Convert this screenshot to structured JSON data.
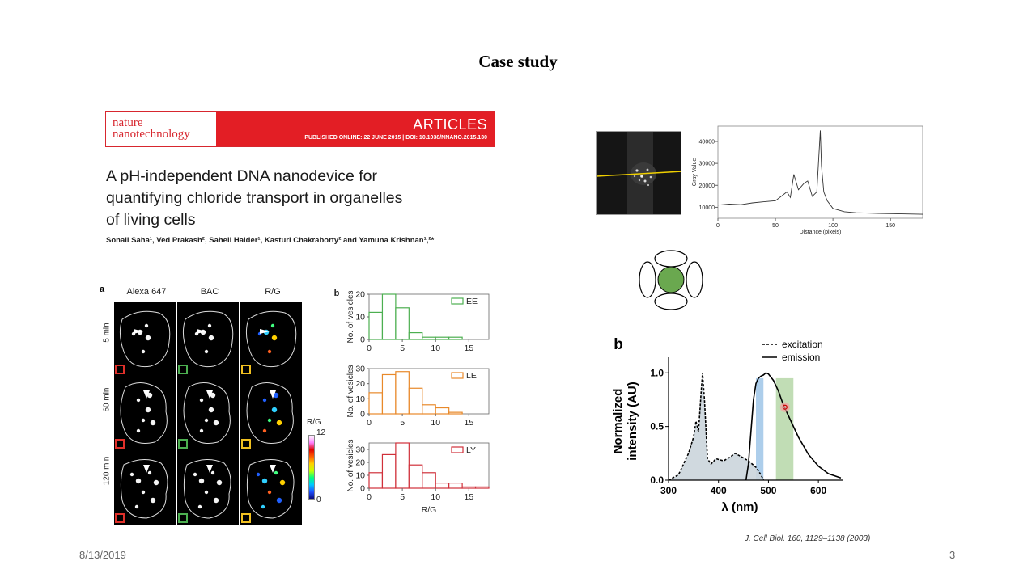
{
  "slide": {
    "title": "Case study",
    "date": "8/13/2019",
    "page_number": "3",
    "citation": "J. Cell Biol. 160, 1129–1138 (2003)"
  },
  "paper": {
    "journal_line1": "nature",
    "journal_line2": "nanotechnology",
    "section": "ARTICLES",
    "published": "PUBLISHED ONLINE: 22 JUNE 2015 | DOI: 10.1038/NNANO.2015.130",
    "title_line1": "A pH-independent DNA nanodevice for",
    "title_line2": "quantifying chloride transport in organelles",
    "title_line3": "of living cells",
    "authors": "Sonali Saha¹, Ved Prakash², Saheli Halder¹, Kasturi Chakraborty² and Yamuna Krishnan¹,²*"
  },
  "figure_a": {
    "label": "a",
    "columns": [
      "Alexa 647",
      "BAC",
      "R/G"
    ],
    "rows": [
      "5 min",
      "60 min",
      "120 min"
    ],
    "colorbar_title": "R/G",
    "colorbar_max": "12",
    "colorbar_min": "0",
    "colors": {
      "alexa_inset": "#e0302a",
      "bac_inset": "#4caf50",
      "rg_inset": "#f0c020"
    }
  },
  "chart_data": [
    {
      "type": "bar",
      "panel": "b",
      "ylabel": "No. of vesicles",
      "xlabel": "",
      "legend": "EE",
      "color": "#4caf50",
      "bin_edges": [
        0,
        2,
        4,
        6,
        8,
        10,
        12,
        14
      ],
      "values": [
        12,
        20,
        14,
        3,
        1,
        1,
        1
      ],
      "xticks": [
        0,
        5,
        10,
        15
      ],
      "yticks": [
        0,
        10,
        20
      ],
      "xlim": [
        0,
        18
      ],
      "ylim": [
        0,
        20
      ],
      "legend_position": "top-right"
    },
    {
      "type": "bar",
      "ylabel": "No. of vesicles",
      "xlabel": "",
      "legend": "LE",
      "color": "#e8892a",
      "bin_edges": [
        0,
        2,
        4,
        6,
        8,
        10,
        12,
        14
      ],
      "values": [
        14,
        26,
        28,
        17,
        6,
        4,
        1
      ],
      "xticks": [
        0,
        5,
        10,
        15
      ],
      "yticks": [
        0,
        10,
        20,
        30
      ],
      "xlim": [
        0,
        18
      ],
      "ylim": [
        0,
        30
      ],
      "legend_position": "top-right"
    },
    {
      "type": "bar",
      "ylabel": "No. of vesicles",
      "xlabel": "R/G",
      "legend": "LY",
      "color": "#d0303a",
      "bin_edges": [
        0,
        2,
        4,
        6,
        8,
        10,
        12,
        14,
        16,
        18
      ],
      "values": [
        12,
        26,
        35,
        18,
        12,
        4,
        4,
        1,
        1
      ],
      "xticks": [
        0,
        5,
        10,
        15
      ],
      "yticks": [
        0,
        10,
        20,
        30
      ],
      "xlim": [
        0,
        18
      ],
      "ylim": [
        0,
        35
      ],
      "legend_position": "top-right"
    },
    {
      "type": "line",
      "panel": "line-profile",
      "xlabel": "Distance (pixels)",
      "ylabel": "Gray Value",
      "xticks": [
        0,
        50,
        100,
        150
      ],
      "yticks": [
        10000,
        20000,
        30000,
        40000
      ],
      "xlim": [
        0,
        178
      ],
      "ylim": [
        5000,
        47000
      ],
      "color": "#333333",
      "x": [
        0,
        10,
        20,
        30,
        40,
        50,
        55,
        60,
        63,
        66,
        70,
        75,
        78,
        82,
        86,
        89,
        90,
        92,
        95,
        100,
        110,
        120,
        140,
        160,
        178
      ],
      "y": [
        11000,
        11500,
        11200,
        12000,
        12500,
        13000,
        15000,
        17000,
        14500,
        25000,
        18000,
        21000,
        22000,
        15000,
        17000,
        45000,
        29000,
        17000,
        13000,
        9500,
        8000,
        7500,
        7200,
        7000,
        6800
      ]
    },
    {
      "type": "line",
      "panel": "b",
      "xlabel": "λ (nm)",
      "ylabel": "Normalized intensity (AU)",
      "xticks": [
        300,
        400,
        500,
        600
      ],
      "yticks": [
        0.0,
        0.5,
        1.0
      ],
      "xlim": [
        300,
        650
      ],
      "ylim": [
        0,
        1.1
      ],
      "legend_position": "top-right",
      "series": [
        {
          "name": "excitation",
          "style": "dashed",
          "x": [
            300,
            320,
            340,
            350,
            355,
            360,
            365,
            368,
            372,
            378,
            385,
            395,
            410,
            425,
            433,
            445,
            460,
            475,
            485,
            490
          ],
          "y": [
            0.0,
            0.05,
            0.25,
            0.4,
            0.55,
            0.45,
            0.8,
            1.0,
            0.75,
            0.2,
            0.15,
            0.2,
            0.18,
            0.22,
            0.25,
            0.22,
            0.18,
            0.12,
            0.05,
            0.0
          ]
        },
        {
          "name": "emission",
          "style": "solid",
          "x": [
            455,
            460,
            465,
            470,
            475,
            480,
            485,
            490,
            495,
            500,
            510,
            520,
            530,
            545,
            560,
            580,
            600,
            620,
            645
          ],
          "y": [
            0.0,
            0.15,
            0.45,
            0.75,
            0.9,
            0.95,
            0.97,
            0.98,
            1.0,
            0.99,
            0.93,
            0.83,
            0.7,
            0.55,
            0.4,
            0.24,
            0.13,
            0.06,
            0.02
          ]
        }
      ],
      "bands": [
        {
          "x0": 475,
          "x1": 490,
          "color": "#9fc5e8"
        },
        {
          "x0": 515,
          "x1": 550,
          "color": "#b6d7a8"
        }
      ]
    }
  ]
}
